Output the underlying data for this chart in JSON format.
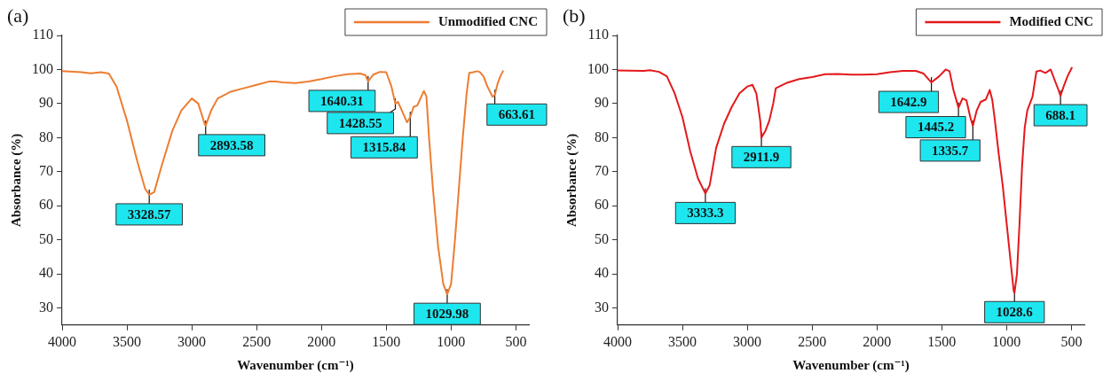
{
  "chart_data": [
    {
      "type": "line",
      "title": "(a)",
      "xlabel": "Wavenumber (cm⁻¹)",
      "ylabel": "Absorbance (%)",
      "xlim": [
        4000,
        400
      ],
      "xticks": [
        4000,
        3500,
        3000,
        2500,
        2000,
        1500,
        1000,
        500
      ],
      "ylim": [
        25,
        110
      ],
      "yticks": [
        30,
        40,
        50,
        60,
        70,
        80,
        90,
        100,
        110
      ],
      "grid": false,
      "legend": "top right",
      "line_style": "solid",
      "x": [
        4000,
        3850,
        3780,
        3700,
        3640,
        3580,
        3500,
        3420,
        3360,
        3328,
        3290,
        3230,
        3150,
        3080,
        3000,
        2950,
        2900,
        2893,
        2850,
        2800,
        2700,
        2600,
        2500,
        2400,
        2350,
        2300,
        2200,
        2100,
        2000,
        1900,
        1800,
        1700,
        1660,
        1640,
        1600,
        1550,
        1500,
        1460,
        1430,
        1410,
        1380,
        1340,
        1315,
        1290,
        1260,
        1230,
        1210,
        1190,
        1170,
        1140,
        1100,
        1060,
        1030,
        1000,
        970,
        940,
        910,
        880,
        860,
        830,
        800,
        780,
        750,
        720,
        680,
        663,
        640,
        620,
        600
      ],
      "series": [
        {
          "name": "Unmodified CNC",
          "color": "#ed7d31",
          "values": [
            99.5,
            99.2,
            98.9,
            99.2,
            98.8,
            95,
            85,
            73,
            65,
            63.2,
            64,
            72,
            82,
            88,
            91.5,
            90,
            84,
            83.5,
            88,
            91.5,
            93.5,
            94.5,
            95.5,
            96.5,
            96.5,
            96.2,
            96,
            96.5,
            97.2,
            98,
            98.6,
            98.8,
            98.3,
            96.5,
            98.5,
            99.3,
            99.2,
            95,
            90,
            90.5,
            88,
            84.5,
            86,
            89,
            89.5,
            92,
            93.7,
            92,
            80,
            65,
            48,
            37,
            34,
            37,
            50,
            65,
            80,
            93,
            99,
            99.2,
            99.5,
            99.3,
            98,
            95,
            92,
            92.5,
            96,
            98,
            99.5
          ]
        }
      ],
      "annotations": [
        {
          "text": "3328.57",
          "x": 3328,
          "y": 63.2
        },
        {
          "text": "2893.58",
          "x": 2893,
          "y": 83.5
        },
        {
          "text": "1640.31",
          "x": 1640,
          "y": 96.5
        },
        {
          "text": "1428.55",
          "x": 1430,
          "y": 90
        },
        {
          "text": "1315.84",
          "x": 1315,
          "y": 86
        },
        {
          "text": "1029.98",
          "x": 1030,
          "y": 34
        },
        {
          "text": "663.61",
          "x": 663,
          "y": 92.5
        }
      ]
    },
    {
      "type": "line",
      "title": "(b)",
      "xlabel": "Wavenumber (cm⁻¹)",
      "ylabel": "Absorbance (%)",
      "xlim": [
        4000,
        400
      ],
      "xticks": [
        4000,
        3500,
        3000,
        2500,
        2000,
        1500,
        1000,
        500
      ],
      "ylim": [
        25,
        110
      ],
      "yticks": [
        30,
        40,
        50,
        60,
        70,
        80,
        90,
        100,
        110
      ],
      "grid": false,
      "legend": "top right",
      "line_style": "solid",
      "x": [
        4000,
        3800,
        3750,
        3680,
        3620,
        3560,
        3500,
        3440,
        3380,
        3323,
        3290,
        3240,
        3180,
        3120,
        3060,
        3000,
        2960,
        2930,
        2900,
        2891,
        2860,
        2830,
        2800,
        2780,
        2700,
        2600,
        2500,
        2400,
        2300,
        2200,
        2100,
        2000,
        1900,
        1800,
        1700,
        1640,
        1580,
        1520,
        1470,
        1440,
        1410,
        1380,
        1371,
        1340,
        1310,
        1280,
        1260,
        1230,
        1200,
        1160,
        1130,
        1110,
        1090,
        1060,
        1030,
        1000,
        970,
        945,
        939,
        920,
        900,
        880,
        860,
        840,
        800,
        770,
        740,
        700,
        660,
        630,
        600,
        584,
        560,
        530,
        497
      ],
      "series": [
        {
          "name": "Modified CNC",
          "color": "#e3191c",
          "values": [
            99.7,
            99.6,
            99.8,
            99.3,
            98,
            93,
            86,
            76,
            68,
            63.6,
            66,
            77,
            84,
            89,
            93,
            95,
            95.5,
            93,
            85,
            80,
            82,
            85,
            90,
            94.5,
            96,
            97.2,
            97.8,
            98.6,
            98.7,
            98.5,
            98.5,
            98.6,
            99.2,
            99.6,
            99.6,
            98.8,
            96.2,
            98,
            100,
            99.5,
            94,
            90,
            88.8,
            91.5,
            91,
            86,
            83.5,
            88,
            90.5,
            91.2,
            94,
            91,
            85,
            75,
            66,
            55,
            44,
            35,
            34.5,
            40,
            55,
            72,
            83,
            88,
            92,
            99.4,
            99.7,
            99,
            100,
            97,
            94,
            92.3,
            95,
            98,
            100.5
          ]
        }
      ],
      "annotations": [
        {
          "text": "3333.3",
          "x": 3323,
          "y": 63.6
        },
        {
          "text": "2911.9",
          "x": 2891,
          "y": 80
        },
        {
          "text": "1642.9",
          "x": 1580,
          "y": 96.2
        },
        {
          "text": "1445.2",
          "x": 1371,
          "y": 88.8
        },
        {
          "text": "1335.7",
          "x": 1260,
          "y": 83.5
        },
        {
          "text": "1028.6",
          "x": 939,
          "y": 34.5
        },
        {
          "text": "688.1",
          "x": 584,
          "y": 92.3
        }
      ]
    }
  ]
}
